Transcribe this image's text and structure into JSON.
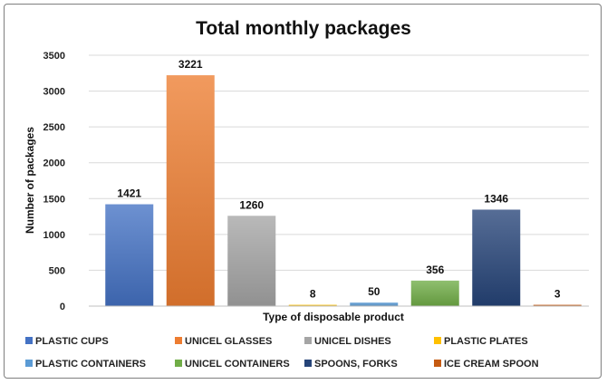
{
  "chart_data": {
    "type": "bar",
    "title": "Total monthly packages",
    "xlabel": "Type of disposable product",
    "ylabel": "Number of packages",
    "ylim": [
      0,
      3500
    ],
    "yticks": [
      0,
      500,
      1000,
      1500,
      2000,
      2500,
      3000,
      3500
    ],
    "grid": true,
    "legend_position": "bottom",
    "categories": [
      "PLASTIC CUPS",
      "UNICEL GLASSES",
      "UNICEL DISHES",
      "PLASTIC PLATES",
      "PLASTIC CONTAINERS",
      "UNICEL CONTAINERS",
      "SPOONS, FORKS",
      "ICE CREAM SPOON"
    ],
    "values": [
      1421,
      3221,
      1260,
      8,
      50,
      356,
      1346,
      3
    ],
    "colors": [
      "#4472C4",
      "#ED7D31",
      "#A5A5A5",
      "#FFC000",
      "#5B9BD5",
      "#70AD47",
      "#264478",
      "#C55A11"
    ]
  }
}
